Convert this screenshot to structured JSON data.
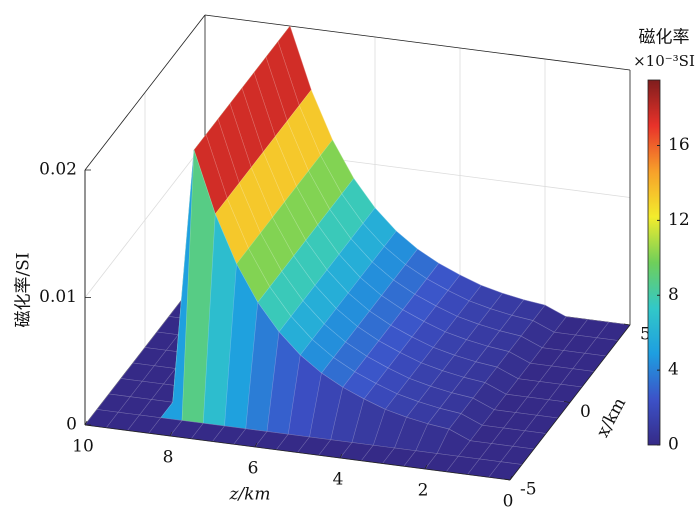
{
  "chart_data": {
    "type": "surface3d",
    "xlabel": "z/km",
    "ylabel": "x/km",
    "zlabel": "磁化率/SI",
    "x": [
      0,
      0.5,
      1,
      1.5,
      2,
      2.5,
      3,
      3.5,
      4,
      4.5,
      5,
      5.5,
      6,
      6.5,
      7,
      7.5,
      8,
      8.5,
      9,
      9.5,
      10
    ],
    "y": [
      -5,
      -4,
      -3,
      -2,
      -1,
      0,
      1,
      2,
      3,
      4,
      5
    ],
    "values": [
      [
        0,
        0,
        0,
        0,
        0,
        0,
        0,
        0,
        0,
        0,
        0,
        0,
        0,
        0,
        0,
        0,
        0,
        0,
        0,
        0,
        0
      ],
      [
        0,
        0,
        0,
        0,
        0,
        0,
        0,
        0,
        0,
        0,
        0,
        0,
        0,
        0,
        0,
        0,
        0,
        0,
        0,
        0,
        0
      ],
      [
        0,
        0,
        0,
        0,
        0.0007,
        0.0009,
        0.0012,
        0.0016,
        0.0022,
        0.0029,
        0.0038,
        0.005,
        0.0066,
        0.0087,
        0.0115,
        0.0152,
        0.02,
        0,
        0,
        0,
        0
      ],
      [
        0,
        0,
        0,
        0,
        0.0007,
        0.0009,
        0.0012,
        0.0016,
        0.0022,
        0.0029,
        0.0038,
        0.005,
        0.0066,
        0.0087,
        0.0115,
        0.0152,
        0.02,
        0,
        0,
        0,
        0
      ],
      [
        0,
        0,
        0,
        0,
        0.0007,
        0.0009,
        0.0012,
        0.0016,
        0.0022,
        0.0029,
        0.0038,
        0.005,
        0.0066,
        0.0087,
        0.0115,
        0.0152,
        0.02,
        0,
        0,
        0,
        0
      ],
      [
        0,
        0,
        0,
        0,
        0.0007,
        0.0009,
        0.0012,
        0.0016,
        0.0022,
        0.0029,
        0.0038,
        0.005,
        0.0066,
        0.0087,
        0.0115,
        0.0152,
        0.02,
        0,
        0,
        0,
        0
      ],
      [
        0,
        0,
        0,
        0,
        0.0007,
        0.0009,
        0.0012,
        0.0016,
        0.0022,
        0.0029,
        0.0038,
        0.005,
        0.0066,
        0.0087,
        0.0115,
        0.0152,
        0.02,
        0,
        0,
        0,
        0
      ],
      [
        0,
        0,
        0,
        0,
        0.0007,
        0.0009,
        0.0012,
        0.0016,
        0.0022,
        0.0029,
        0.0038,
        0.005,
        0.0066,
        0.0087,
        0.0115,
        0.0152,
        0.02,
        0,
        0,
        0,
        0
      ],
      [
        0,
        0,
        0,
        0,
        0.0007,
        0.0009,
        0.0012,
        0.0016,
        0.0022,
        0.0029,
        0.0038,
        0.005,
        0.0066,
        0.0087,
        0.0115,
        0.0152,
        0.02,
        0,
        0,
        0,
        0
      ],
      [
        0,
        0,
        0,
        0,
        0.0007,
        0.0009,
        0.0012,
        0.0016,
        0.0022,
        0.0029,
        0.0038,
        0.005,
        0.0066,
        0.0087,
        0.0115,
        0.0152,
        0.02,
        0,
        0,
        0,
        0
      ],
      [
        0,
        0,
        0,
        0,
        0.0007,
        0.0009,
        0.0012,
        0.0016,
        0.0022,
        0.0029,
        0.0038,
        0.005,
        0.0066,
        0.0087,
        0.0115,
        0.0152,
        0.02,
        0,
        0,
        0,
        0
      ]
    ],
    "xlim": [
      0,
      10
    ],
    "ylim": [
      -5,
      5
    ],
    "zlim": [
      0,
      0.02
    ],
    "xticks": [
      0,
      2,
      4,
      6,
      8,
      10
    ],
    "yticks": [
      -5,
      0,
      5
    ],
    "zticks": [
      0,
      0.01,
      0.02
    ],
    "grid": true,
    "colormap": [
      "#352a87",
      "#3c52c8",
      "#1e9ee0",
      "#32c8c8",
      "#6fcf5a",
      "#f4ec2c",
      "#f7a02a",
      "#e8322a",
      "#7f1d1d"
    ],
    "colorbar": {
      "title": "磁化率",
      "unit": "×10⁻³SI",
      "clim": [
        0,
        0.0195
      ],
      "ticks": [
        0,
        {
          "value": 0.004,
          "label": "4"
        },
        {
          "value": 0.008,
          "label": "8"
        },
        {
          "value": 0.012,
          "label": "12"
        },
        {
          "value": 0.016,
          "label": "16"
        }
      ]
    }
  }
}
